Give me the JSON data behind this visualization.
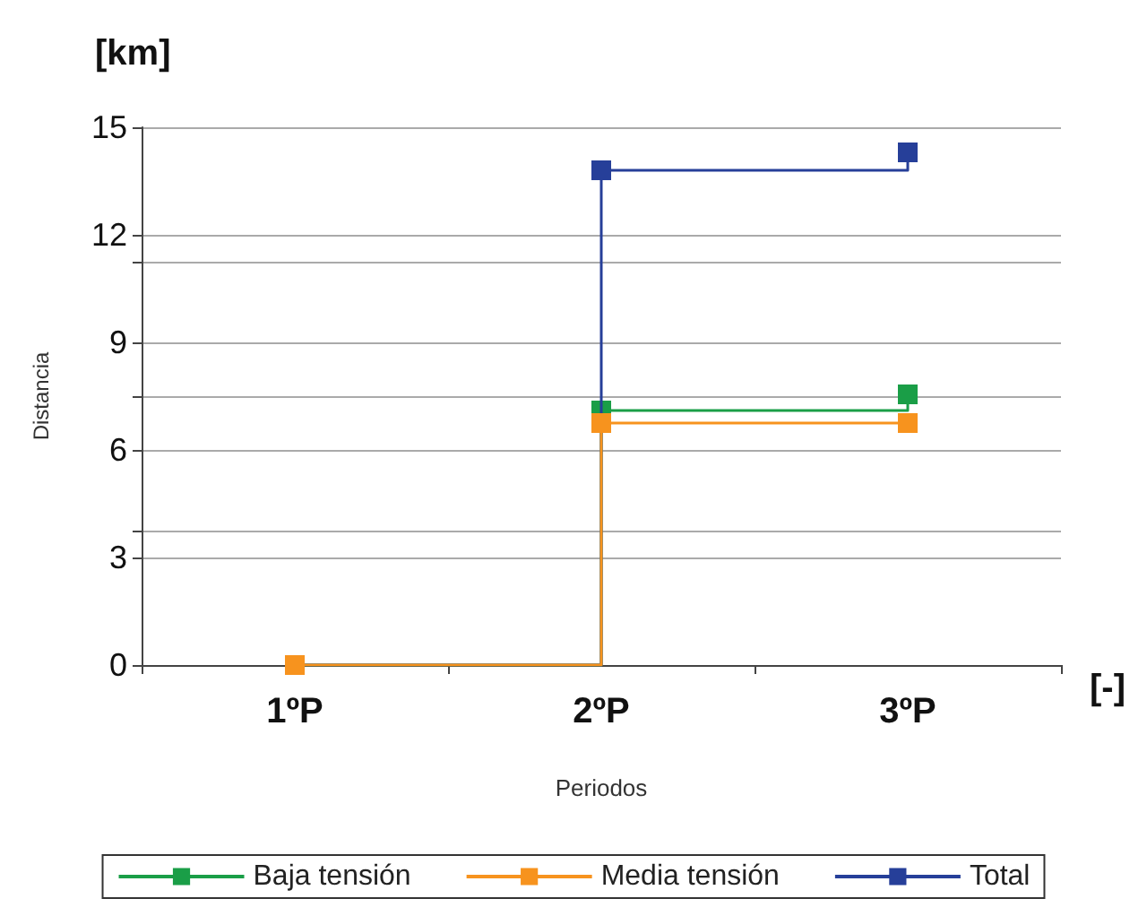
{
  "chart_data": {
    "type": "step",
    "ylabel": "Distancia",
    "xlabel": "Periodos",
    "annotations": [
      "[km]",
      "[-]"
    ],
    "categories": [
      "1ºP",
      "2ºP",
      "3ºP"
    ],
    "series": [
      {
        "name": "Baja tensión",
        "color": "#1a9e47",
        "values": [
          0,
          7.1,
          7.55
        ]
      },
      {
        "name": "Media tensión",
        "color": "#f7931e",
        "values": [
          0,
          6.75,
          6.75
        ]
      },
      {
        "name": "Total",
        "color": "#263f99",
        "values": [
          0,
          13.8,
          14.3
        ]
      }
    ],
    "ylim": [
      0,
      15
    ],
    "yticks": [
      0,
      3,
      {
        "value": 3.75,
        "label": null
      },
      6,
      {
        "value": 7.5,
        "label": null
      },
      9,
      {
        "value": 11.25,
        "label": null
      },
      12,
      15
    ],
    "grid": "y",
    "legend": "bottom",
    "marker": "square",
    "line_style": "solid"
  }
}
